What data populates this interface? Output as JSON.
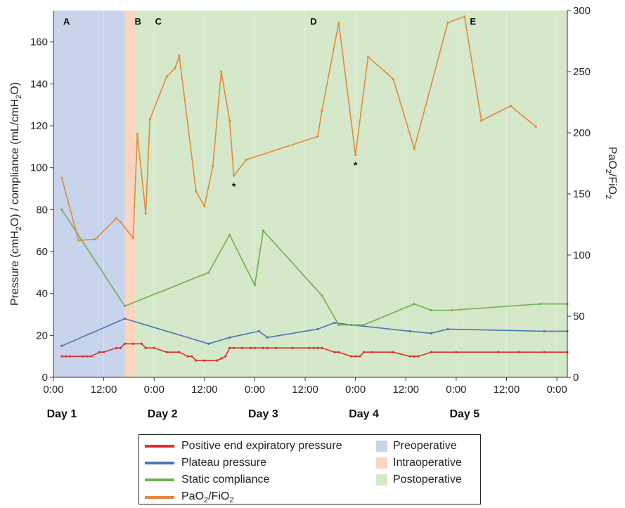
{
  "chart_data": {
    "type": "line",
    "x_unit": "hours from Day 1 00:00",
    "x_ticks": [
      {
        "x": 0,
        "label": "0:00"
      },
      {
        "x": 12,
        "label": "12:00"
      },
      {
        "x": 24,
        "label": "0:00"
      },
      {
        "x": 36,
        "label": "12:00"
      },
      {
        "x": 48,
        "label": "0:00"
      },
      {
        "x": 60,
        "label": "12:00"
      },
      {
        "x": 72,
        "label": "0:00"
      },
      {
        "x": 84,
        "label": "12:00"
      },
      {
        "x": 96,
        "label": "0:00"
      },
      {
        "x": 108,
        "label": "12:00"
      },
      {
        "x": 120,
        "label": "0:00"
      }
    ],
    "x_range": [
      0,
      122.5
    ],
    "day_labels": [
      {
        "x": 2,
        "label": "Day 1"
      },
      {
        "x": 26,
        "label": "Day 2"
      },
      {
        "x": 50,
        "label": "Day 3"
      },
      {
        "x": 74,
        "label": "Day 4"
      },
      {
        "x": 98,
        "label": "Day 5"
      }
    ],
    "y_left": {
      "label": "Pressure (cmH2O) / compliance (mL/cmH2O)",
      "range": [
        0,
        175
      ],
      "ticks": [
        0,
        20,
        40,
        60,
        80,
        100,
        120,
        140,
        160
      ]
    },
    "y_right": {
      "label": "PaO2/FiO2",
      "range": [
        0,
        300
      ],
      "ticks": [
        0,
        50,
        100,
        150,
        200,
        250,
        300
      ]
    },
    "phases": [
      {
        "name": "Preoperative",
        "label": "A",
        "start": 0,
        "end": 17,
        "color": "#c8d3ec"
      },
      {
        "name": "Intraoperative",
        "label": "B",
        "start": 17,
        "end": 19.5,
        "color": "#f9d5c0"
      },
      {
        "name": "Postoperative",
        "label": "",
        "start": 19.5,
        "end": 122.5,
        "color": "#d5e8c9"
      }
    ],
    "segment_labels": [
      {
        "label": "C",
        "x": 25
      },
      {
        "label": "D",
        "x": 62
      },
      {
        "label": "E",
        "x": 100
      }
    ],
    "series": [
      {
        "name": "Positive end expiratory pressure",
        "axis": "left",
        "color": "#d9302c",
        "points": [
          [
            2,
            10
          ],
          [
            3,
            10
          ],
          [
            4,
            10
          ],
          [
            7,
            10
          ],
          [
            8,
            10
          ],
          [
            9,
            10
          ],
          [
            11,
            12
          ],
          [
            12,
            12
          ],
          [
            15,
            14
          ],
          [
            16,
            14
          ],
          [
            17,
            16
          ],
          [
            19,
            16
          ],
          [
            21,
            16
          ],
          [
            22,
            14
          ],
          [
            24,
            14
          ],
          [
            27,
            12
          ],
          [
            30,
            12
          ],
          [
            32,
            10
          ],
          [
            33,
            10
          ],
          [
            34,
            8
          ],
          [
            36,
            8
          ],
          [
            39,
            8
          ],
          [
            40,
            9
          ],
          [
            41,
            10
          ],
          [
            42,
            14
          ],
          [
            43,
            14
          ],
          [
            45,
            14
          ],
          [
            47,
            14
          ],
          [
            48,
            14
          ],
          [
            50,
            14
          ],
          [
            51,
            14
          ],
          [
            53,
            14
          ],
          [
            57,
            14
          ],
          [
            61,
            14
          ],
          [
            62,
            14
          ],
          [
            63,
            14
          ],
          [
            64,
            14
          ],
          [
            67,
            12
          ],
          [
            68,
            12
          ],
          [
            71,
            10
          ],
          [
            72,
            10
          ],
          [
            73,
            10
          ],
          [
            74,
            12
          ],
          [
            76,
            12
          ],
          [
            81,
            12
          ],
          [
            85,
            10
          ],
          [
            86,
            10
          ],
          [
            87,
            10
          ],
          [
            90,
            12
          ],
          [
            96,
            12
          ],
          [
            106,
            12
          ],
          [
            111,
            12
          ],
          [
            117,
            12
          ],
          [
            122.5,
            12
          ]
        ]
      },
      {
        "name": "Plateau pressure",
        "axis": "left",
        "color": "#4a78b5",
        "points": [
          [
            2,
            15
          ],
          [
            17,
            28
          ],
          [
            37,
            16
          ],
          [
            42,
            19
          ],
          [
            49,
            22
          ],
          [
            51,
            19
          ],
          [
            63,
            23
          ],
          [
            67,
            26
          ],
          [
            71,
            25
          ],
          [
            85,
            22
          ],
          [
            90,
            21
          ],
          [
            94,
            23
          ],
          [
            117,
            22
          ],
          [
            122.5,
            22
          ]
        ]
      },
      {
        "name": "Static compliance",
        "axis": "left",
        "color": "#6fb050",
        "points": [
          [
            2,
            80
          ],
          [
            17,
            34
          ],
          [
            37,
            50
          ],
          [
            42,
            68
          ],
          [
            48,
            44
          ],
          [
            50,
            70
          ],
          [
            64,
            39
          ],
          [
            68,
            25
          ],
          [
            74,
            25
          ],
          [
            86,
            35
          ],
          [
            90,
            32
          ],
          [
            95,
            32
          ],
          [
            116,
            35
          ],
          [
            122.5,
            35
          ]
        ]
      },
      {
        "name": "PaO2/FiO2",
        "axis": "right",
        "color": "#e08a3c",
        "points": [
          [
            2,
            163
          ],
          [
            6,
            112
          ],
          [
            10,
            113
          ],
          [
            15,
            130
          ],
          [
            16,
            127
          ],
          [
            19,
            114
          ],
          [
            20,
            199
          ],
          [
            22,
            134
          ],
          [
            23,
            211
          ],
          [
            27,
            246
          ],
          [
            29,
            253
          ],
          [
            30,
            263
          ],
          [
            34,
            152
          ],
          [
            36,
            140
          ],
          [
            38,
            173
          ],
          [
            40,
            250
          ],
          [
            42,
            210
          ],
          [
            43,
            165
          ],
          [
            46,
            178
          ],
          [
            63,
            197
          ],
          [
            64,
            218
          ],
          [
            68,
            290
          ],
          [
            72,
            182
          ],
          [
            75,
            262
          ],
          [
            81,
            244
          ],
          [
            86,
            187
          ],
          [
            94,
            290
          ],
          [
            98,
            295
          ],
          [
            102,
            210
          ],
          [
            109,
            222
          ],
          [
            115,
            205
          ]
        ]
      }
    ],
    "annotations": [
      {
        "text": "*",
        "x": 43,
        "y_right": 157
      },
      {
        "text": "*",
        "x": 72,
        "y_right": 174
      }
    ],
    "legend": {
      "lines": [
        {
          "label": "Positive end expiratory pressure",
          "color": "#d9302c"
        },
        {
          "label": "Plateau pressure",
          "color": "#4a78b5"
        },
        {
          "label": "Static compliance",
          "color": "#6fb050"
        },
        {
          "label": "PaO2/FiO2",
          "color": "#e08a3c"
        }
      ],
      "phases": [
        {
          "label": "Preoperative",
          "color": "#c8d3ec"
        },
        {
          "label": "Intraoperative",
          "color": "#f9d5c0"
        },
        {
          "label": "Postoperative",
          "color": "#d5e8c9"
        }
      ]
    }
  }
}
